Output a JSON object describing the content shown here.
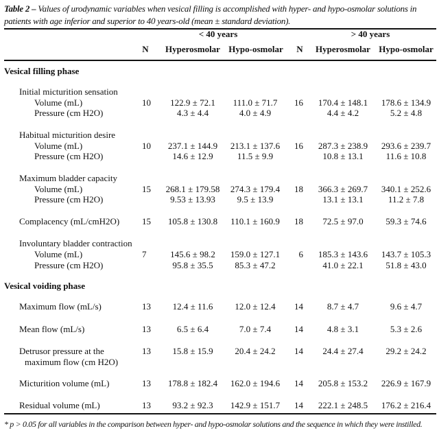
{
  "caption": {
    "label": "Table 2 –",
    "text": "Values of urodynamic variables when vesical filling is accomplished with hyper- and hypo-osmolar solutions in patients with age inferior and superior to 40 years-old (mean ± standard deviation)."
  },
  "header": {
    "group_lt40": "< 40 years",
    "group_gt40": "> 40 years",
    "n": "N",
    "hyper": "Hyperosmolar",
    "hypo": "Hypo-osmolar"
  },
  "rows": [
    {
      "kind": "section",
      "label": "Vesical filling phase"
    },
    {
      "kind": "group",
      "label": "Initial micturition sensation"
    },
    {
      "kind": "sub",
      "label": "Volume (mL)",
      "n1": "10",
      "a": "122.9 ± 72.1",
      "b": "111.0 ± 71.7",
      "n2": "16",
      "c": "170.4 ± 148.1",
      "d": "178.6 ± 134.9"
    },
    {
      "kind": "sub",
      "label": "Pressure (cm H2O)",
      "a": "4.3 ± 4.4",
      "b": "4.0 ± 4.9",
      "c": "4.4 ± 4.2",
      "d": "5.2 ± 4.8"
    },
    {
      "kind": "group",
      "label": "Habitual micturition desire"
    },
    {
      "kind": "sub",
      "label": "Volume (mL)",
      "n1": "10",
      "a": "237.1 ± 144.9",
      "b": "213.1 ± 137.6",
      "n2": "16",
      "c": "287.3 ± 238.9",
      "d": "293.6 ± 239.7"
    },
    {
      "kind": "sub",
      "label": "Pressure (cm H2O)",
      "a": "14.6 ± 12.9",
      "b": "11.5 ± 9.9",
      "c": "10.8 ± 13.1",
      "d": "11.6 ± 10.8"
    },
    {
      "kind": "group",
      "label": "Maximum bladder capacity"
    },
    {
      "kind": "sub",
      "label": "Volume (mL)",
      "n1": "15",
      "a": "268.1 ± 179.58",
      "b": "274.3 ± 179.4",
      "n2": "18",
      "c": "366.3 ± 269.7",
      "d": "340.1 ± 252.6"
    },
    {
      "kind": "sub",
      "label": "Pressure (cm H2O)",
      "a": "9.53 ± 13.93",
      "b": "9.5 ± 13.9",
      "c": "13.1 ± 13.1",
      "d": "11.2 ± 7.8"
    },
    {
      "kind": "group",
      "label": "Complacency (mL/cmH2O)",
      "n1": "15",
      "a": "105.8 ± 130.8",
      "b": "110.1 ± 160.9",
      "n2": "18",
      "c": "72.5 ± 97.0",
      "d": "59.3 ± 74.6"
    },
    {
      "kind": "group",
      "label": "Involuntary bladder contraction"
    },
    {
      "kind": "sub",
      "label": "Volume (mL)",
      "n1": "7",
      "a": "145.6 ± 98.2",
      "b": "159.0 ± 127.1",
      "n2": "6",
      "c": "185.3 ± 143.6",
      "d": "143.7 ± 105.3"
    },
    {
      "kind": "sub",
      "label": "Pressure (cm H2O)",
      "a": "95.8 ± 35.5",
      "b": "85.3 ± 47.2",
      "c": "41.0 ± 22.1",
      "d": "51.8 ± 43.0"
    },
    {
      "kind": "section",
      "label": "Vesical voiding phase"
    },
    {
      "kind": "group",
      "label": "Maximum flow (mL/s)",
      "n1": "13",
      "a": "12.4 ± 11.6",
      "b": "12.0 ± 12.4",
      "n2": "14",
      "c": "8.7 ± 4.7",
      "d": "9.6 ± 4.7"
    },
    {
      "kind": "group",
      "label": "Mean flow (mL/s)",
      "n1": "13",
      "a": "6.5 ± 6.4",
      "b": "7.0 ± 7.4",
      "n2": "14",
      "c": "4.8 ± 3.1",
      "d": "5.3 ± 2.6"
    },
    {
      "kind": "group",
      "label": "Detrusor pressure at the",
      "label2": "maximum flow (cm H2O)",
      "n1": "13",
      "a": "15.8 ± 15.9",
      "b": "20.4 ± 24.2",
      "n2": "14",
      "c": "24.4 ± 27.4",
      "d": "29.2 ± 24.2"
    },
    {
      "kind": "group",
      "label": "Micturition volume (mL)",
      "n1": "13",
      "a": "178.8 ± 182.4",
      "b": "162.0 ± 194.6",
      "n2": "14",
      "c": "205.8 ± 153.2",
      "d": "226.9 ± 167.9"
    },
    {
      "kind": "group",
      "label": "Residual volume (mL)",
      "n1": "13",
      "a": "93.2 ± 92.3",
      "b": "142.9 ± 151.7",
      "n2": "14",
      "c": "222.1 ± 248.5",
      "d": "176.2 ± 216.4"
    }
  ],
  "footnote": "* p > 0.05 for all variables in the comparison between hyper- and hypo-osmolar solutions and the sequence in which they were instilled."
}
